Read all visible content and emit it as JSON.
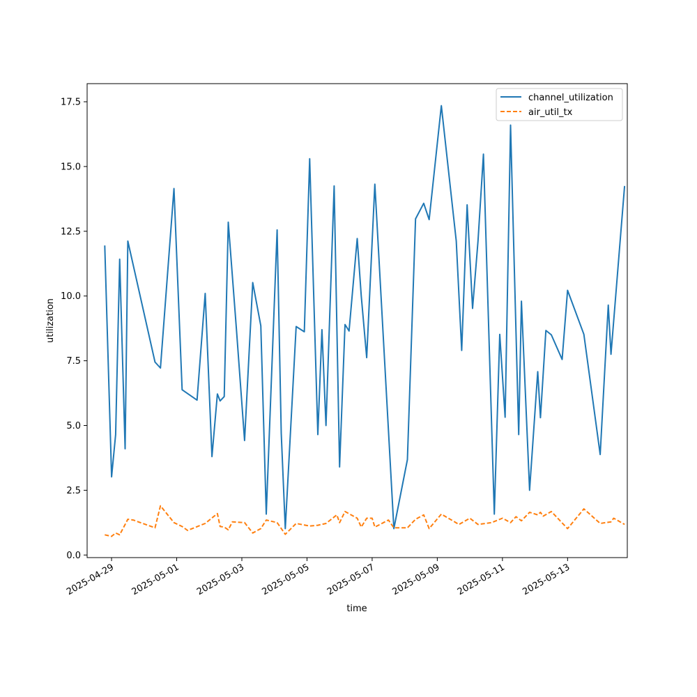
{
  "chart_data": {
    "type": "line",
    "title": "",
    "xlabel": "time",
    "ylabel": "utilization",
    "x_ticks": [
      "2025-04-29",
      "2025-05-01",
      "2025-05-03",
      "2025-05-05",
      "2025-05-07",
      "2025-05-09",
      "2025-05-11",
      "2025-05-13"
    ],
    "y_ticks": [
      "0.0",
      "2.5",
      "5.0",
      "7.5",
      "10.0",
      "12.5",
      "15.0",
      "17.5"
    ],
    "xlim": [
      "2025-04-28T06:00",
      "2025-05-14T20:00"
    ],
    "ylim": [
      -0.1,
      18.2
    ],
    "grid": false,
    "legend_position": "top-right",
    "series": [
      {
        "name": "channel_utilization",
        "color": "#1f77b4",
        "style": "solid",
        "points": [
          [
            "2025-04-28T19:00",
            11.95
          ],
          [
            "2025-04-29T00:00",
            3.02
          ],
          [
            "2025-04-29T03:00",
            4.65
          ],
          [
            "2025-04-29T06:00",
            11.42
          ],
          [
            "2025-04-29T10:00",
            4.1
          ],
          [
            "2025-04-29T12:00",
            12.12
          ],
          [
            "2025-04-30T08:00",
            7.45
          ],
          [
            "2025-04-30T12:00",
            7.22
          ],
          [
            "2025-04-30T22:00",
            14.15
          ],
          [
            "2025-05-01T04:00",
            6.38
          ],
          [
            "2025-05-01T15:00",
            5.98
          ],
          [
            "2025-05-01T21:00",
            10.1
          ],
          [
            "2025-05-02T02:00",
            3.8
          ],
          [
            "2025-05-02T06:00",
            6.22
          ],
          [
            "2025-05-02T08:00",
            5.95
          ],
          [
            "2025-05-02T11:00",
            6.12
          ],
          [
            "2025-05-02T14:00",
            12.85
          ],
          [
            "2025-05-02T20:00",
            8.72
          ],
          [
            "2025-05-03T02:00",
            4.42
          ],
          [
            "2025-05-03T08:00",
            10.52
          ],
          [
            "2025-05-03T14:00",
            8.85
          ],
          [
            "2025-05-03T18:00",
            1.58
          ],
          [
            "2025-05-04T02:00",
            12.55
          ],
          [
            "2025-05-04T05:00",
            4.7
          ],
          [
            "2025-05-04T08:00",
            1.02
          ],
          [
            "2025-05-04T16:00",
            8.82
          ],
          [
            "2025-05-04T22:00",
            8.62
          ],
          [
            "2025-05-05T02:00",
            15.3
          ],
          [
            "2025-05-05T08:00",
            4.65
          ],
          [
            "2025-05-05T11:00",
            8.7
          ],
          [
            "2025-05-05T14:00",
            5.0
          ],
          [
            "2025-05-05T20:00",
            14.25
          ],
          [
            "2025-05-06T00:00",
            3.4
          ],
          [
            "2025-05-06T04:00",
            8.9
          ],
          [
            "2025-05-06T07:00",
            8.65
          ],
          [
            "2025-05-06T13:00",
            12.22
          ],
          [
            "2025-05-06T16:00",
            10.0
          ],
          [
            "2025-05-06T20:00",
            7.62
          ],
          [
            "2025-05-07T02:00",
            14.32
          ],
          [
            "2025-05-07T16:00",
            1.02
          ],
          [
            "2025-05-08T02:00",
            3.68
          ],
          [
            "2025-05-08T08:00",
            12.98
          ],
          [
            "2025-05-08T14:00",
            13.58
          ],
          [
            "2025-05-08T18:00",
            12.95
          ],
          [
            "2025-05-09T03:00",
            17.35
          ],
          [
            "2025-05-09T14:00",
            12.12
          ],
          [
            "2025-05-09T18:00",
            7.9
          ],
          [
            "2025-05-09T22:00",
            13.52
          ],
          [
            "2025-05-10T02:00",
            9.52
          ],
          [
            "2025-05-10T06:00",
            12.12
          ],
          [
            "2025-05-10T10:00",
            15.48
          ],
          [
            "2025-05-10T18:00",
            1.58
          ],
          [
            "2025-05-10T22:00",
            8.52
          ],
          [
            "2025-05-11T02:00",
            5.32
          ],
          [
            "2025-05-11T06:00",
            16.6
          ],
          [
            "2025-05-11T12:00",
            4.65
          ],
          [
            "2025-05-11T14:00",
            9.8
          ],
          [
            "2025-05-11T20:00",
            2.5
          ],
          [
            "2025-05-12T02:00",
            7.08
          ],
          [
            "2025-05-12T04:00",
            5.3
          ],
          [
            "2025-05-12T08:00",
            8.67
          ],
          [
            "2025-05-12T12:00",
            8.5
          ],
          [
            "2025-05-12T20:00",
            7.55
          ],
          [
            "2025-05-13T00:00",
            10.22
          ],
          [
            "2025-05-13T12:00",
            8.52
          ],
          [
            "2025-05-14T00:00",
            3.88
          ],
          [
            "2025-05-14T06:00",
            9.65
          ],
          [
            "2025-05-14T08:00",
            7.75
          ],
          [
            "2025-05-14T18:00",
            14.25
          ]
        ]
      },
      {
        "name": "air_util_tx",
        "color": "#ff7f0e",
        "style": "dashed",
        "points": [
          [
            "2025-04-28T19:00",
            0.78
          ],
          [
            "2025-04-29T00:00",
            0.72
          ],
          [
            "2025-04-29T03:00",
            0.85
          ],
          [
            "2025-04-29T06:00",
            0.78
          ],
          [
            "2025-04-29T12:00",
            1.38
          ],
          [
            "2025-04-29T16:00",
            1.35
          ],
          [
            "2025-04-30T08:00",
            1.05
          ],
          [
            "2025-04-30T12:00",
            1.9
          ],
          [
            "2025-04-30T22:00",
            1.25
          ],
          [
            "2025-05-01T04:00",
            1.1
          ],
          [
            "2025-05-01T08:00",
            0.95
          ],
          [
            "2025-05-01T21:00",
            1.22
          ],
          [
            "2025-05-02T06:00",
            1.6
          ],
          [
            "2025-05-02T08:00",
            1.1
          ],
          [
            "2025-05-02T11:00",
            1.08
          ],
          [
            "2025-05-02T14:00",
            0.97
          ],
          [
            "2025-05-02T17:00",
            1.28
          ],
          [
            "2025-05-03T02:00",
            1.25
          ],
          [
            "2025-05-03T08:00",
            0.85
          ],
          [
            "2025-05-03T14:00",
            1.02
          ],
          [
            "2025-05-03T18:00",
            1.35
          ],
          [
            "2025-05-04T02:00",
            1.25
          ],
          [
            "2025-05-04T08:00",
            0.8
          ],
          [
            "2025-05-04T16:00",
            1.22
          ],
          [
            "2025-05-05T02:00",
            1.12
          ],
          [
            "2025-05-05T08:00",
            1.15
          ],
          [
            "2025-05-05T14:00",
            1.22
          ],
          [
            "2025-05-05T22:00",
            1.55
          ],
          [
            "2025-05-06T00:00",
            1.25
          ],
          [
            "2025-05-06T04:00",
            1.68
          ],
          [
            "2025-05-06T13:00",
            1.42
          ],
          [
            "2025-05-06T16:00",
            1.08
          ],
          [
            "2025-05-06T20:00",
            1.42
          ],
          [
            "2025-05-07T00:00",
            1.42
          ],
          [
            "2025-05-07T02:00",
            1.08
          ],
          [
            "2025-05-07T12:00",
            1.35
          ],
          [
            "2025-05-07T16:00",
            1.05
          ],
          [
            "2025-05-08T02:00",
            1.05
          ],
          [
            "2025-05-08T08:00",
            1.38
          ],
          [
            "2025-05-08T14:00",
            1.55
          ],
          [
            "2025-05-08T18:00",
            1.02
          ],
          [
            "2025-05-09T03:00",
            1.58
          ],
          [
            "2025-05-09T16:00",
            1.18
          ],
          [
            "2025-05-10T00:00",
            1.42
          ],
          [
            "2025-05-10T06:00",
            1.18
          ],
          [
            "2025-05-10T16:00",
            1.25
          ],
          [
            "2025-05-11T00:00",
            1.42
          ],
          [
            "2025-05-11T06:00",
            1.25
          ],
          [
            "2025-05-11T10:00",
            1.48
          ],
          [
            "2025-05-11T14:00",
            1.32
          ],
          [
            "2025-05-11T20:00",
            1.65
          ],
          [
            "2025-05-12T02:00",
            1.55
          ],
          [
            "2025-05-12T04:00",
            1.65
          ],
          [
            "2025-05-12T06:00",
            1.5
          ],
          [
            "2025-05-12T12:00",
            1.68
          ],
          [
            "2025-05-13T00:00",
            1.02
          ],
          [
            "2025-05-13T12:00",
            1.78
          ],
          [
            "2025-05-14T00:00",
            1.22
          ],
          [
            "2025-05-14T08:00",
            1.28
          ],
          [
            "2025-05-14T10:00",
            1.42
          ],
          [
            "2025-05-14T18:00",
            1.18
          ]
        ]
      }
    ]
  }
}
